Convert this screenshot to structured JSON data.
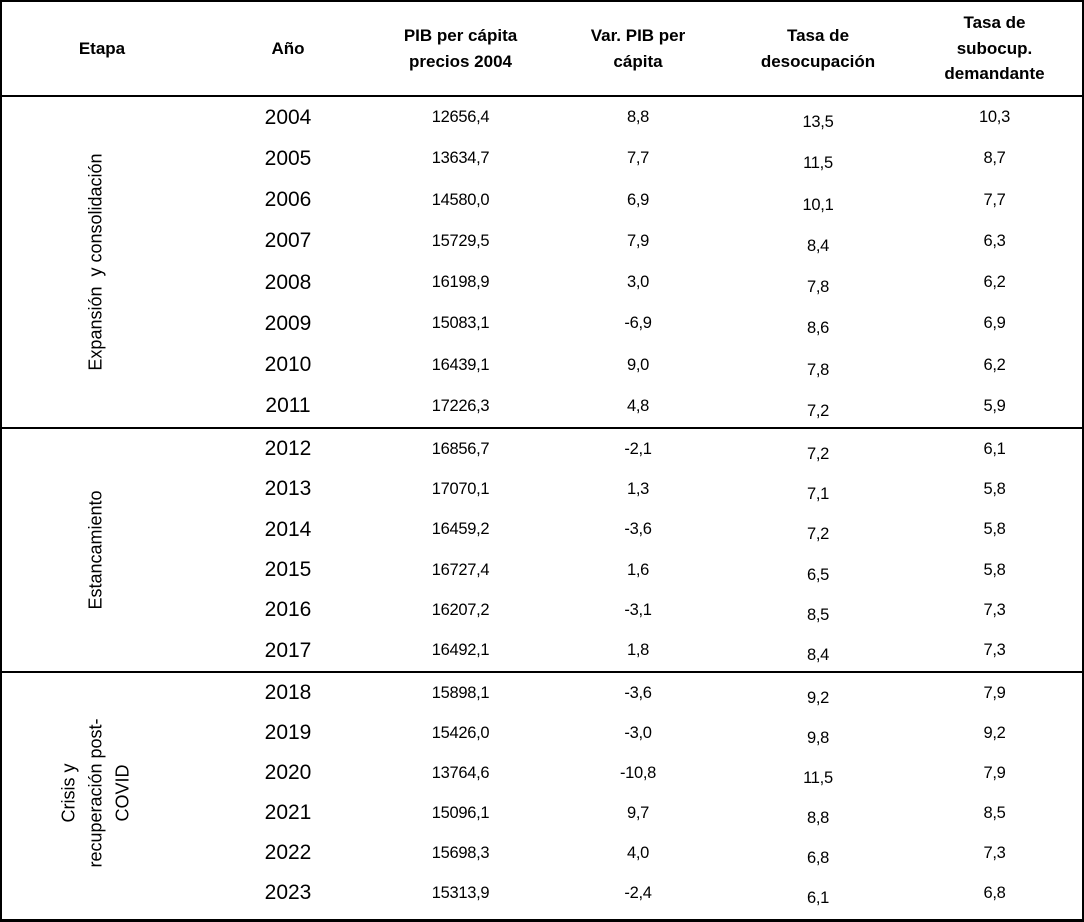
{
  "header": {
    "etapa": "Etapa",
    "ano": "Año",
    "pib": "PIB per cápita\nprecios 2004",
    "var": "Var. PIB per\ncápita",
    "desocup": "Tasa de\ndesocupación",
    "subocup": "Tasa de\nsubocup.\ndemandante"
  },
  "sections": [
    {
      "label": "Expansión  y consolidación",
      "rows": [
        {
          "year": "2004",
          "pib": "12656,4",
          "var": "8,8",
          "desocup": "13,5",
          "subocup": "10,3"
        },
        {
          "year": "2005",
          "pib": "13634,7",
          "var": "7,7",
          "desocup": "11,5",
          "subocup": "8,7"
        },
        {
          "year": "2006",
          "pib": "14580,0",
          "var": "6,9",
          "desocup": "10,1",
          "subocup": "7,7"
        },
        {
          "year": "2007",
          "pib": "15729,5",
          "var": "7,9",
          "desocup": "8,4",
          "subocup": "6,3"
        },
        {
          "year": "2008",
          "pib": "16198,9",
          "var": "3,0",
          "desocup": "7,8",
          "subocup": "6,2"
        },
        {
          "year": "2009",
          "pib": "15083,1",
          "var": "-6,9",
          "desocup": "8,6",
          "subocup": "6,9"
        },
        {
          "year": "2010",
          "pib": "16439,1",
          "var": "9,0",
          "desocup": "7,8",
          "subocup": "6,2"
        },
        {
          "year": "2011",
          "pib": "17226,3",
          "var": "4,8",
          "desocup": "7,2",
          "subocup": "5,9"
        }
      ]
    },
    {
      "label": "Estancamiento",
      "rows": [
        {
          "year": "2012",
          "pib": "16856,7",
          "var": "-2,1",
          "desocup": "7,2",
          "subocup": "6,1"
        },
        {
          "year": "2013",
          "pib": "17070,1",
          "var": "1,3",
          "desocup": "7,1",
          "subocup": "5,8"
        },
        {
          "year": "2014",
          "pib": "16459,2",
          "var": "-3,6",
          "desocup": "7,2",
          "subocup": "5,8"
        },
        {
          "year": "2015",
          "pib": "16727,4",
          "var": "1,6",
          "desocup": "6,5",
          "subocup": "5,8"
        },
        {
          "year": "2016",
          "pib": "16207,2",
          "var": "-3,1",
          "desocup": "8,5",
          "subocup": "7,3"
        },
        {
          "year": "2017",
          "pib": "16492,1",
          "var": "1,8",
          "desocup": "8,4",
          "subocup": "7,3"
        }
      ]
    },
    {
      "label": "Crisis y\nrecuperación post-\nCOVID",
      "rows": [
        {
          "year": "2018",
          "pib": "15898,1",
          "var": "-3,6",
          "desocup": "9,2",
          "subocup": "7,9"
        },
        {
          "year": "2019",
          "pib": "15426,0",
          "var": "-3,0",
          "desocup": "9,8",
          "subocup": "9,2"
        },
        {
          "year": "2020",
          "pib": "13764,6",
          "var": "-10,8",
          "desocup": "11,5",
          "subocup": "7,9"
        },
        {
          "year": "2021",
          "pib": "15096,1",
          "var": "9,7",
          "desocup": "8,8",
          "subocup": "8,5"
        },
        {
          "year": "2022",
          "pib": "15698,3",
          "var": "4,0",
          "desocup": "6,8",
          "subocup": "7,3"
        },
        {
          "year": "2023",
          "pib": "15313,9",
          "var": "-2,4",
          "desocup": "6,1",
          "subocup": "6,8"
        }
      ]
    }
  ],
  "chart_data": {
    "type": "table",
    "columns": [
      "Etapa",
      "Año",
      "PIB per cápita precios 2004",
      "Var. PIB per cápita",
      "Tasa de desocupación",
      "Tasa de subocup. demandante"
    ],
    "rows": [
      [
        "Expansión y consolidación",
        2004,
        12656.4,
        8.8,
        13.5,
        10.3
      ],
      [
        "Expansión y consolidación",
        2005,
        13634.7,
        7.7,
        11.5,
        8.7
      ],
      [
        "Expansión y consolidación",
        2006,
        14580.0,
        6.9,
        10.1,
        7.7
      ],
      [
        "Expansión y consolidación",
        2007,
        15729.5,
        7.9,
        8.4,
        6.3
      ],
      [
        "Expansión y consolidación",
        2008,
        16198.9,
        3.0,
        7.8,
        6.2
      ],
      [
        "Expansión y consolidación",
        2009,
        15083.1,
        -6.9,
        8.6,
        6.9
      ],
      [
        "Expansión y consolidación",
        2010,
        16439.1,
        9.0,
        7.8,
        6.2
      ],
      [
        "Expansión y consolidación",
        2011,
        17226.3,
        4.8,
        7.2,
        5.9
      ],
      [
        "Estancamiento",
        2012,
        16856.7,
        -2.1,
        7.2,
        6.1
      ],
      [
        "Estancamiento",
        2013,
        17070.1,
        1.3,
        7.1,
        5.8
      ],
      [
        "Estancamiento",
        2014,
        16459.2,
        -3.6,
        7.2,
        5.8
      ],
      [
        "Estancamiento",
        2015,
        16727.4,
        1.6,
        6.5,
        5.8
      ],
      [
        "Estancamiento",
        2016,
        16207.2,
        -3.1,
        8.5,
        7.3
      ],
      [
        "Estancamiento",
        2017,
        16492.1,
        1.8,
        8.4,
        7.3
      ],
      [
        "Crisis y recuperación post-COVID",
        2018,
        15898.1,
        -3.6,
        9.2,
        7.9
      ],
      [
        "Crisis y recuperación post-COVID",
        2019,
        15426.0,
        -3.0,
        9.8,
        9.2
      ],
      [
        "Crisis y recuperación post-COVID",
        2020,
        13764.6,
        -10.8,
        11.5,
        7.9
      ],
      [
        "Crisis y recuperación post-COVID",
        2021,
        15096.1,
        9.7,
        8.8,
        8.5
      ],
      [
        "Crisis y recuperación post-COVID",
        2022,
        15698.3,
        4.0,
        6.8,
        7.3
      ],
      [
        "Crisis y recuperación post-COVID",
        2023,
        15313.9,
        -2.4,
        6.1,
        6.8
      ]
    ]
  },
  "colors": {
    "border": "#000000",
    "text": "#000000",
    "background": "#ffffff"
  }
}
